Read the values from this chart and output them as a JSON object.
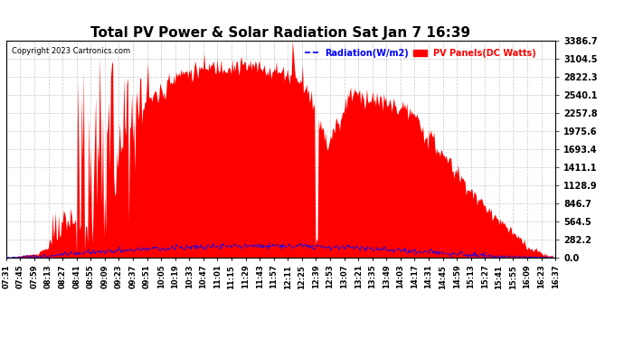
{
  "title": "Total PV Power & Solar Radiation Sat Jan 7 16:39",
  "copyright": "Copyright 2023 Cartronics.com",
  "legend_radiation": "Radiation(W/m2)",
  "legend_pv": "PV Panels(DC Watts)",
  "y_max": 3386.7,
  "y_ticks": [
    0.0,
    282.2,
    564.5,
    846.7,
    1128.9,
    1411.1,
    1693.4,
    1975.6,
    2257.8,
    2540.1,
    2822.3,
    3104.5,
    3386.7
  ],
  "background_color": "#ffffff",
  "pv_color": "#ff0000",
  "radiation_color": "#0000ff",
  "grid_color": "#c8c8c8",
  "x_tick_labels": [
    "07:31",
    "07:45",
    "07:59",
    "08:13",
    "08:27",
    "08:41",
    "08:55",
    "09:09",
    "09:23",
    "09:37",
    "09:51",
    "10:05",
    "10:19",
    "10:33",
    "10:47",
    "11:01",
    "11:15",
    "11:29",
    "11:43",
    "11:57",
    "12:11",
    "12:25",
    "12:39",
    "12:53",
    "13:07",
    "13:21",
    "13:35",
    "13:49",
    "14:03",
    "14:17",
    "14:31",
    "14:45",
    "14:59",
    "15:13",
    "15:27",
    "15:41",
    "15:55",
    "16:09",
    "16:23",
    "16:37"
  ],
  "n_ticks": 40,
  "n_points": 548
}
